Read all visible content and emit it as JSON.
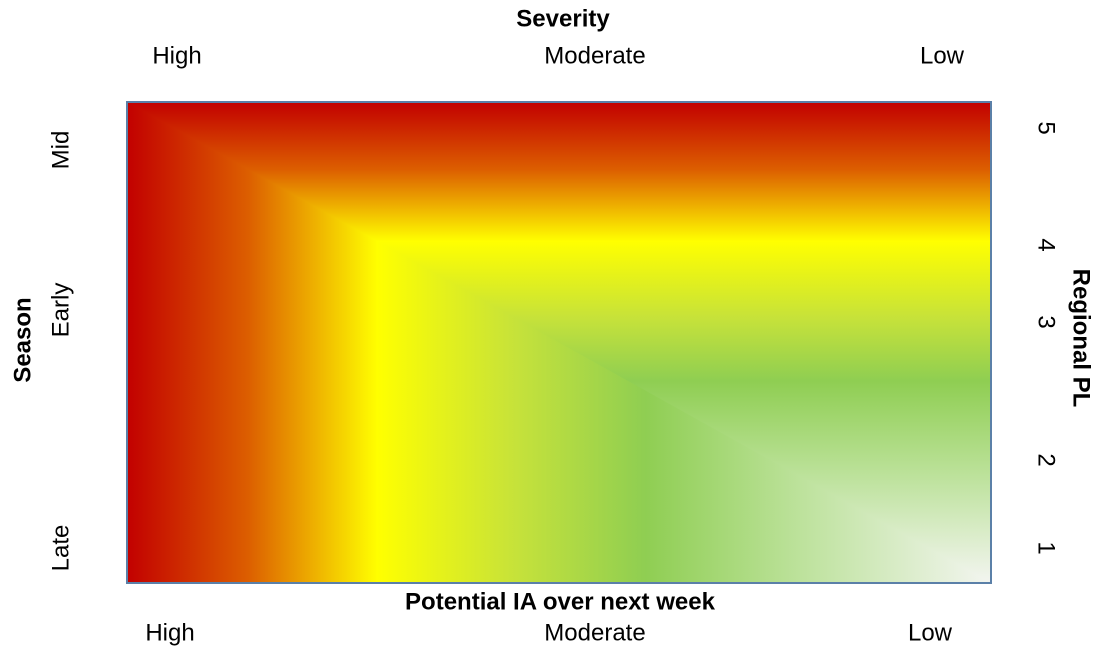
{
  "top_axis": {
    "title": "Severity",
    "labels": [
      "High",
      "Moderate",
      "Low"
    ]
  },
  "bottom_axis": {
    "title": "Potential IA over next week",
    "labels": [
      "High",
      "Moderate",
      "Low"
    ]
  },
  "left_axis": {
    "title": "Season",
    "labels": [
      "Mid",
      "Early",
      "Late"
    ]
  },
  "right_axis": {
    "title": "Regional PL",
    "labels": [
      "5",
      "4",
      "3",
      "2",
      "1"
    ]
  }
}
